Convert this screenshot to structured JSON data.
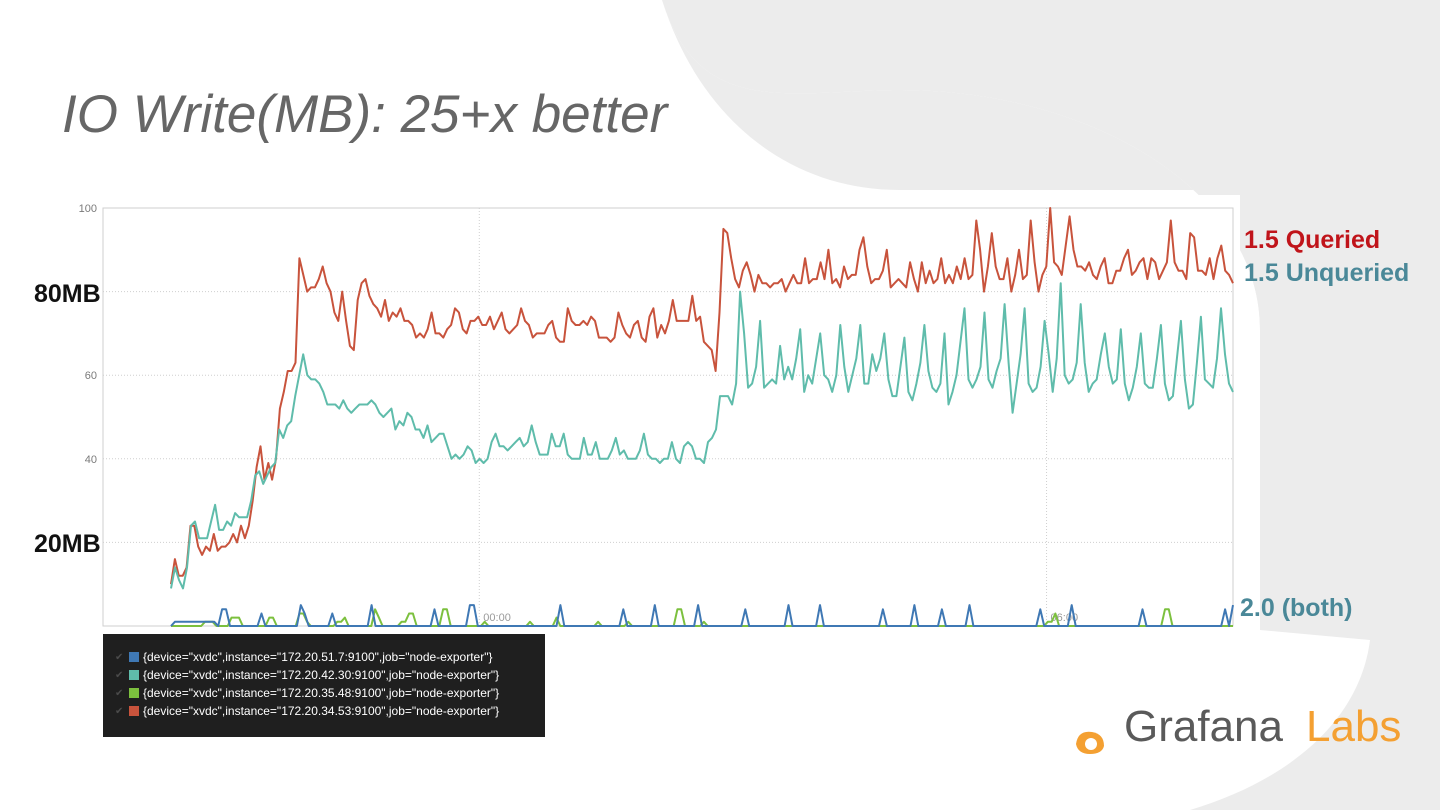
{
  "slide": {
    "title": "IO Write(MB): 25+x better"
  },
  "annotations": {
    "mb80": "80MB",
    "mb20": "20MB"
  },
  "series_labels": {
    "queried": "1.5 Queried",
    "unqueried": "1.5 Unqueried",
    "both": "2.0 (both)"
  },
  "legend": {
    "items": [
      {
        "label": "{device=\"xvdc\",instance=\"172.20.51.7:9100\",job=\"node-exporter\"}",
        "color": "#3f78b4"
      },
      {
        "label": "{device=\"xvdc\",instance=\"172.20.42.30:9100\",job=\"node-exporter\"}",
        "color": "#5fbcab"
      },
      {
        "label": "{device=\"xvdc\",instance=\"172.20.35.48:9100\",job=\"node-exporter\"}",
        "color": "#7cc03e"
      },
      {
        "label": "{device=\"xvdc\",instance=\"172.20.34.53:9100\",job=\"node-exporter\"}",
        "color": "#c8533c"
      }
    ]
  },
  "brand": {
    "word1": "Grafana",
    "word2": "Labs"
  },
  "colors": {
    "queried": "#c8533c",
    "unqueried": "#5fbcab",
    "v20_blue": "#3f78b4",
    "v20_green": "#7cc03e",
    "background_decor": "#ededed"
  },
  "chart_data": {
    "type": "line",
    "yticks": [
      100,
      60,
      40
    ],
    "ylim": [
      0,
      100
    ],
    "time_labels": [
      "00:00",
      "06:00"
    ],
    "grid": true,
    "series": [
      {
        "name": "{device=\"xvdc\",instance=\"172.20.34.53:9100\",job=\"node-exporter\"}",
        "color": "#c8533c",
        "values": [
          10,
          16,
          12,
          12,
          14,
          24,
          24,
          19,
          17,
          19,
          18,
          22,
          18,
          19,
          19,
          20,
          22,
          20,
          24,
          21,
          24,
          30,
          38,
          43,
          35,
          39,
          35,
          40,
          52,
          56,
          61,
          61,
          63,
          88,
          84,
          80,
          81,
          81,
          83,
          86,
          82,
          80,
          75,
          73,
          80,
          73,
          67,
          66,
          78,
          82,
          83,
          79,
          77,
          76,
          74,
          78,
          73,
          75,
          74,
          76,
          73,
          73,
          72,
          69,
          70,
          69,
          71,
          75,
          70,
          70,
          69,
          71,
          72,
          76,
          75,
          71,
          70,
          73,
          73,
          74,
          72,
          72,
          74,
          71,
          73,
          75,
          71,
          70,
          71,
          72,
          76,
          73,
          72,
          69,
          70,
          70,
          70,
          72,
          73,
          69,
          68,
          68,
          76,
          73,
          72,
          72,
          73,
          72,
          74,
          73,
          69,
          69,
          69,
          68,
          69,
          75,
          72,
          70,
          69,
          72,
          73,
          69,
          68,
          74,
          76,
          69,
          72,
          70,
          73,
          78,
          73,
          73,
          73,
          73,
          79,
          73,
          74,
          68,
          67,
          66,
          61,
          75,
          95,
          94,
          88,
          83,
          81,
          85,
          87,
          84,
          80,
          84,
          82,
          82,
          81,
          82,
          82,
          83,
          80,
          82,
          84,
          82,
          82,
          88,
          82,
          83,
          83,
          87,
          83,
          90,
          82,
          83,
          81,
          86,
          83,
          84,
          84,
          90,
          93,
          86,
          82,
          83,
          83,
          85,
          90,
          81,
          82,
          83,
          82,
          81,
          87,
          83,
          80,
          87,
          82,
          85,
          82,
          83,
          88,
          82,
          84,
          82,
          86,
          83,
          88,
          83,
          84,
          97,
          90,
          80,
          86,
          94,
          86,
          83,
          83,
          88,
          80,
          84,
          90,
          83,
          84,
          97,
          87,
          80,
          84,
          86,
          100,
          87,
          86,
          84,
          91,
          98,
          90,
          86,
          86,
          85,
          87,
          84,
          83,
          86,
          88,
          82,
          82,
          85,
          85,
          88,
          90,
          84,
          85,
          87,
          88,
          83,
          88,
          87,
          83,
          85,
          87,
          97,
          87,
          85,
          85,
          83,
          94,
          93,
          85,
          85,
          84,
          88,
          83,
          88,
          91,
          85,
          84,
          82
        ]
      },
      {
        "name": "{device=\"xvdc\",instance=\"172.20.42.30:9100\",job=\"node-exporter\"}",
        "color": "#5fbcab",
        "values": [
          9,
          14,
          11,
          9,
          14,
          24,
          25,
          21,
          21,
          21,
          25,
          29,
          23,
          23,
          25,
          24,
          27,
          26,
          26,
          26,
          30,
          36,
          37,
          34,
          36,
          38,
          39,
          47,
          45,
          48,
          49,
          55,
          60,
          65,
          60,
          59,
          59,
          58,
          56,
          53,
          53,
          53,
          52,
          54,
          52,
          51,
          52,
          53,
          53,
          53,
          54,
          53,
          51,
          50,
          51,
          52,
          47,
          49,
          48,
          51,
          50,
          47,
          47,
          45,
          48,
          44,
          45,
          46,
          46,
          43,
          40,
          41,
          40,
          41,
          43,
          42,
          39,
          40,
          39,
          40,
          44,
          46,
          43,
          43,
          42,
          43,
          44,
          45,
          43,
          44,
          48,
          44,
          41,
          41,
          41,
          46,
          43,
          43,
          46,
          41,
          40,
          40,
          40,
          45,
          41,
          41,
          44,
          40,
          40,
          40,
          42,
          45,
          41,
          42,
          40,
          40,
          40,
          42,
          46,
          41,
          40,
          40,
          39,
          40,
          40,
          44,
          40,
          39,
          43,
          44,
          43,
          40,
          40,
          39,
          44,
          45,
          47,
          55,
          55,
          55,
          53,
          58,
          80,
          70,
          57,
          58,
          62,
          73,
          57,
          58,
          59,
          58,
          67,
          59,
          62,
          59,
          64,
          71,
          56,
          60,
          58,
          64,
          70,
          60,
          59,
          56,
          60,
          72,
          62,
          56,
          60,
          64,
          72,
          58,
          58,
          65,
          61,
          64,
          70,
          59,
          55,
          55,
          62,
          69,
          56,
          54,
          58,
          63,
          72,
          61,
          57,
          56,
          58,
          70,
          53,
          56,
          60,
          68,
          76,
          59,
          57,
          59,
          62,
          75,
          59,
          57,
          61,
          64,
          77,
          63,
          51,
          58,
          65,
          76,
          58,
          56,
          57,
          62,
          73,
          65,
          56,
          64,
          82,
          60,
          58,
          59,
          63,
          77,
          63,
          56,
          58,
          59,
          65,
          70,
          62,
          58,
          59,
          71,
          58,
          54,
          57,
          62,
          70,
          58,
          57,
          57,
          64,
          72,
          58,
          54,
          55,
          64,
          73,
          59,
          52,
          53,
          63,
          74,
          59,
          58,
          57,
          64,
          76,
          65,
          58,
          56
        ]
      },
      {
        "name": "{device=\"xvdc\",instance=\"172.20.35.48:9100\",job=\"node-exporter\"}",
        "color": "#7cc03e",
        "values": [
          0,
          0,
          0,
          0,
          0,
          0,
          0,
          0,
          0,
          1,
          1,
          1,
          0,
          0,
          0,
          0,
          2,
          2,
          2,
          0,
          0,
          0,
          0,
          0,
          0,
          0,
          2,
          2,
          0,
          0,
          0,
          0,
          0,
          0,
          3,
          3,
          1,
          0,
          0,
          0,
          0,
          0,
          0,
          0,
          1,
          1,
          2,
          0,
          0,
          0,
          0,
          0,
          0,
          0,
          4,
          2,
          0,
          0,
          0,
          0,
          0,
          1,
          1,
          3,
          3,
          0,
          0,
          0,
          0,
          0,
          0,
          0,
          4,
          4,
          0,
          0,
          0,
          0,
          0,
          0,
          0,
          0,
          0,
          1,
          0,
          0,
          0,
          0,
          0,
          0,
          0,
          0,
          0,
          0,
          0,
          1,
          0,
          0,
          0,
          0,
          0,
          0,
          2,
          0,
          0,
          0,
          0,
          0,
          0,
          0,
          0,
          0,
          0,
          1,
          0,
          0,
          0,
          0,
          0,
          0,
          0,
          1,
          0,
          0,
          0,
          0,
          0,
          0,
          0,
          0,
          0,
          0,
          0,
          0,
          4,
          4,
          0,
          0,
          0,
          0,
          0,
          1,
          0,
          0,
          0,
          0,
          0,
          0,
          0,
          0,
          0,
          0,
          0,
          0,
          0,
          0,
          0,
          0,
          0,
          0,
          0,
          0,
          0,
          0,
          0,
          0,
          0,
          0,
          0,
          0,
          0,
          0,
          0,
          0,
          0,
          0,
          0,
          0,
          0,
          0,
          0,
          0,
          0,
          0,
          0,
          0,
          0,
          0,
          0,
          0,
          0,
          0,
          0,
          0,
          0,
          0,
          0,
          0,
          0,
          0,
          0,
          0,
          0,
          0,
          0,
          0,
          0,
          0,
          0,
          0,
          0,
          0,
          0,
          0,
          0,
          0,
          0,
          0,
          0,
          0,
          0,
          0,
          0,
          0,
          0,
          0,
          0,
          0,
          0,
          0,
          0,
          0,
          1,
          1,
          3,
          0,
          0,
          0,
          0,
          0,
          0,
          0,
          0,
          0,
          0,
          0,
          0,
          0,
          0,
          0,
          0,
          0,
          0,
          0,
          0,
          0,
          0,
          0,
          0,
          0,
          0,
          0,
          0,
          4,
          4,
          0,
          0,
          0,
          0,
          0,
          0,
          0,
          0,
          0,
          0,
          0,
          0,
          0,
          0,
          0,
          0,
          0
        ]
      },
      {
        "name": "{device=\"xvdc\",instance=\"172.20.51.7:9100\",job=\"node-exporter\"}",
        "color": "#3f78b4",
        "values": [
          0,
          1,
          1,
          1,
          1,
          1,
          1,
          1,
          1,
          1,
          1,
          1,
          0,
          4,
          4,
          0,
          0,
          0,
          0,
          0,
          0,
          0,
          0,
          3,
          0,
          0,
          0,
          0,
          0,
          0,
          0,
          0,
          0,
          5,
          3,
          0,
          0,
          0,
          0,
          0,
          0,
          3,
          0,
          0,
          0,
          0,
          0,
          0,
          0,
          0,
          0,
          5,
          0,
          0,
          0,
          0,
          0,
          0,
          0,
          0,
          0,
          0,
          0,
          0,
          0,
          0,
          0,
          4,
          0,
          0,
          0,
          0,
          0,
          0,
          0,
          0,
          5,
          5,
          0,
          0,
          0,
          0,
          0,
          0,
          0,
          0,
          0,
          0,
          0,
          0,
          0,
          0,
          0,
          0,
          0,
          0,
          0,
          0,
          0,
          5,
          0,
          0,
          0,
          0,
          0,
          0,
          0,
          0,
          0,
          0,
          0,
          0,
          0,
          0,
          0,
          4,
          0,
          0,
          0,
          0,
          0,
          0,
          0,
          5,
          0,
          0,
          0,
          0,
          0,
          0,
          0,
          0,
          0,
          0,
          5,
          0,
          0,
          0,
          0,
          0,
          0,
          0,
          0,
          0,
          0,
          0,
          4,
          0,
          0,
          0,
          0,
          0,
          0,
          0,
          0,
          0,
          0,
          5,
          0,
          0,
          0,
          0,
          0,
          0,
          0,
          5,
          0,
          0,
          0,
          0,
          0,
          0,
          0,
          0,
          0,
          0,
          0,
          0,
          0,
          0,
          0,
          4,
          0,
          0,
          0,
          0,
          0,
          0,
          0,
          5,
          0,
          0,
          0,
          0,
          0,
          0,
          4,
          0,
          0,
          0,
          0,
          0,
          0,
          5,
          0,
          0,
          0,
          0,
          0,
          0,
          0,
          0,
          0,
          0,
          0,
          0,
          0,
          0,
          0,
          0,
          0,
          4,
          0,
          0,
          0,
          0,
          0,
          0,
          0,
          5,
          0,
          0,
          0,
          0,
          0,
          0,
          0,
          0,
          0,
          0,
          0,
          0,
          0,
          0,
          0,
          0,
          0,
          4,
          0,
          0,
          0,
          0,
          0,
          0,
          0,
          0,
          0,
          0,
          0,
          0,
          0,
          0,
          0,
          0,
          0,
          0,
          0,
          0,
          4,
          0,
          5
        ]
      }
    ]
  }
}
